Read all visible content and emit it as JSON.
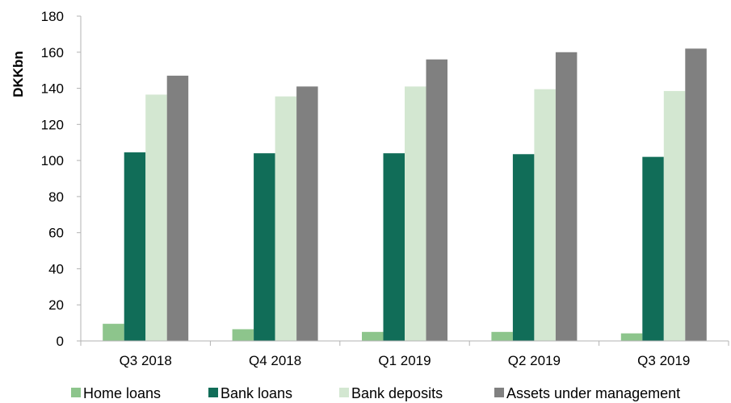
{
  "chart_data": {
    "type": "bar",
    "ylabel": "DKKbn",
    "ylim": [
      0,
      180
    ],
    "yticks": [
      0,
      20,
      40,
      60,
      80,
      100,
      120,
      140,
      160,
      180
    ],
    "grid": false,
    "legend_position": "bottom",
    "categories": [
      "Q3 2018",
      "Q4 2018",
      "Q1 2019",
      "Q2 2019",
      "Q3 2019"
    ],
    "series": [
      {
        "name": "Home loans",
        "color": "#8dc58c",
        "values": [
          9.5,
          6.5,
          5.0,
          5.0,
          4.2
        ]
      },
      {
        "name": "Bank loans",
        "color": "#116d58",
        "values": [
          104.5,
          104.0,
          104.0,
          103.5,
          102.0
        ]
      },
      {
        "name": "Bank deposits",
        "color": "#d3e7d1",
        "values": [
          136.5,
          135.5,
          141.0,
          139.5,
          138.5
        ]
      },
      {
        "name": "Assets under management",
        "color": "#808080",
        "values": [
          147.0,
          141.0,
          156.0,
          160.0,
          162.0
        ]
      }
    ]
  }
}
